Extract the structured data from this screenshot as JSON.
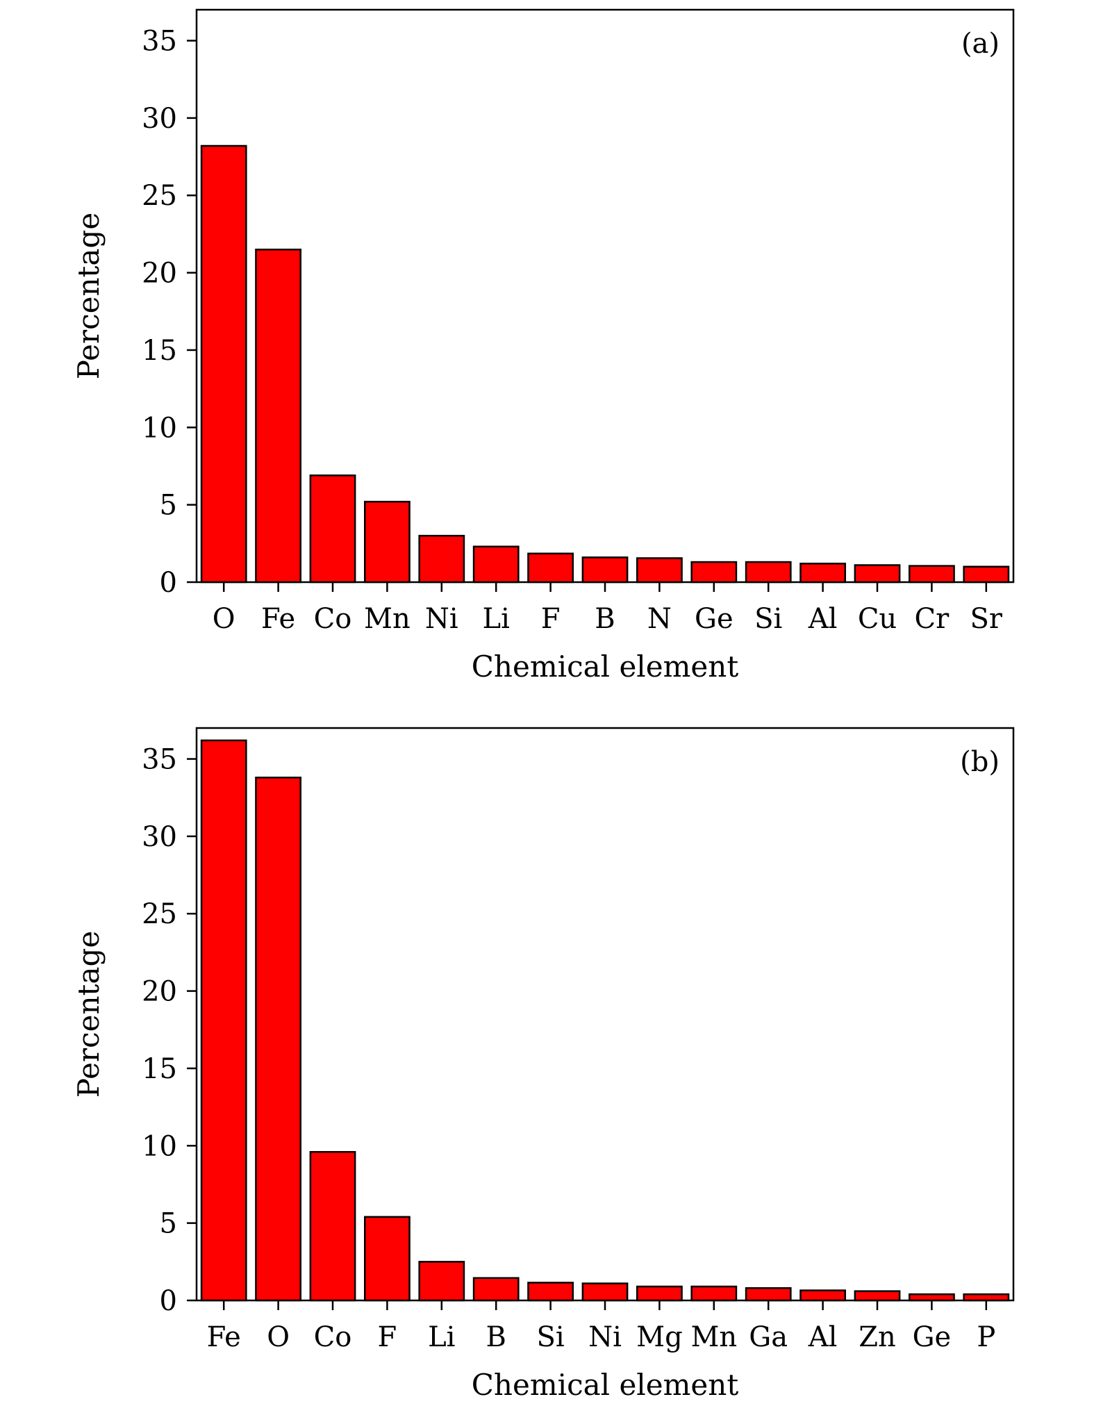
{
  "colors": {
    "bar_fill": "#ff0000",
    "bar_stroke": "#000000",
    "axis": "#000000"
  },
  "chart_data": [
    {
      "type": "bar",
      "panel_label": "(a)",
      "title": "",
      "xlabel": "Chemical element",
      "ylabel": "Percentage",
      "ylim": [
        0,
        37
      ],
      "yticks": [
        0,
        5,
        10,
        15,
        20,
        25,
        30,
        35
      ],
      "grid": false,
      "categories": [
        "O",
        "Fe",
        "Co",
        "Mn",
        "Ni",
        "Li",
        "F",
        "B",
        "N",
        "Ge",
        "Si",
        "Al",
        "Cu",
        "Cr",
        "Sr"
      ],
      "values": [
        28.2,
        21.5,
        6.9,
        5.2,
        3.0,
        2.3,
        1.85,
        1.6,
        1.55,
        1.3,
        1.3,
        1.2,
        1.1,
        1.05,
        1.0
      ]
    },
    {
      "type": "bar",
      "panel_label": "(b)",
      "title": "",
      "xlabel": "Chemical element",
      "ylabel": "Percentage",
      "ylim": [
        0,
        37
      ],
      "yticks": [
        0,
        5,
        10,
        15,
        20,
        25,
        30,
        35
      ],
      "grid": false,
      "categories": [
        "Fe",
        "O",
        "Co",
        "F",
        "Li",
        "B",
        "Si",
        "Ni",
        "Mg",
        "Mn",
        "Ga",
        "Al",
        "Zn",
        "Ge",
        "P"
      ],
      "values": [
        36.2,
        33.8,
        9.6,
        5.4,
        2.5,
        1.45,
        1.15,
        1.1,
        0.9,
        0.9,
        0.8,
        0.65,
        0.6,
        0.4,
        0.4
      ]
    }
  ]
}
